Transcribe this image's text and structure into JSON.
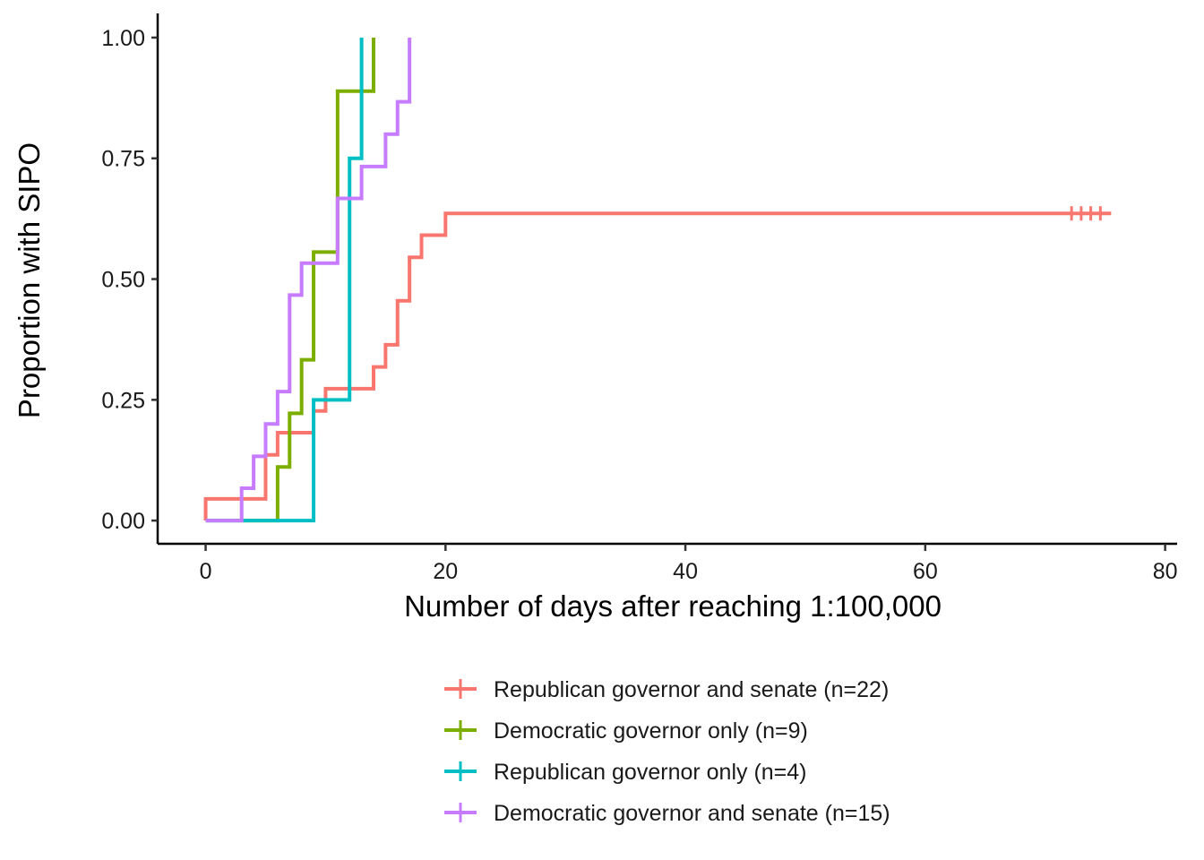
{
  "chart_data": {
    "type": "line",
    "subtype": "step (Kaplan-Meier cumulative incidence)",
    "xlabel": "Number of days after reaching 1:100,000",
    "ylabel": "Proportion with SIPO",
    "xlim": [
      -4,
      81
    ],
    "ylim": [
      -0.048,
      1.05
    ],
    "x_ticks": [
      0,
      20,
      40,
      60,
      80
    ],
    "x_tick_labels": [
      "0",
      "20",
      "40",
      "60",
      "80"
    ],
    "y_ticks": [
      0,
      0.25,
      0.5,
      0.75,
      1.0
    ],
    "y_tick_labels": [
      "0.00",
      "0.25",
      "0.50",
      "0.75",
      "1.00"
    ],
    "grid": false,
    "legend_position": "bottom",
    "series": [
      {
        "name": "Republican governor and senate (n=22)",
        "color": "#F8766D",
        "points": [
          [
            0,
            0.0
          ],
          [
            0,
            0.045
          ],
          [
            5,
            0.045
          ],
          [
            5,
            0.136
          ],
          [
            6,
            0.136
          ],
          [
            6,
            0.182
          ],
          [
            9,
            0.182
          ],
          [
            9,
            0.227
          ],
          [
            10,
            0.227
          ],
          [
            10,
            0.273
          ],
          [
            14,
            0.273
          ],
          [
            14,
            0.318
          ],
          [
            15,
            0.318
          ],
          [
            15,
            0.364
          ],
          [
            16,
            0.364
          ],
          [
            16,
            0.455
          ],
          [
            17,
            0.455
          ],
          [
            17,
            0.545
          ],
          [
            18,
            0.545
          ],
          [
            18,
            0.591
          ],
          [
            20,
            0.591
          ],
          [
            20,
            0.636
          ],
          [
            75.5,
            0.636
          ]
        ],
        "censor_x": [
          72.2,
          73,
          73.8,
          74.6
        ]
      },
      {
        "name": "Democratic governor only (n=9)",
        "color": "#7CAE00",
        "points": [
          [
            0,
            0.0
          ],
          [
            6,
            0.0
          ],
          [
            6,
            0.111
          ],
          [
            7,
            0.111
          ],
          [
            7,
            0.222
          ],
          [
            8,
            0.222
          ],
          [
            8,
            0.333
          ],
          [
            9,
            0.333
          ],
          [
            9,
            0.556
          ],
          [
            11,
            0.556
          ],
          [
            11,
            0.889
          ],
          [
            14,
            0.889
          ],
          [
            14,
            1.0
          ]
        ],
        "censor_x": []
      },
      {
        "name": "Republican governor only (n=4)",
        "color": "#00BFC4",
        "points": [
          [
            0,
            0.0
          ],
          [
            9,
            0.0
          ],
          [
            9,
            0.25
          ],
          [
            12,
            0.25
          ],
          [
            12,
            0.75
          ],
          [
            13,
            0.75
          ],
          [
            13,
            1.0
          ]
        ],
        "censor_x": []
      },
      {
        "name": "Democratic governor and senate (n=15)",
        "color": "#C77CFF",
        "points": [
          [
            0,
            0.0
          ],
          [
            3,
            0.0
          ],
          [
            3,
            0.067
          ],
          [
            4,
            0.067
          ],
          [
            4,
            0.133
          ],
          [
            5,
            0.133
          ],
          [
            5,
            0.2
          ],
          [
            6,
            0.2
          ],
          [
            6,
            0.267
          ],
          [
            7,
            0.267
          ],
          [
            7,
            0.467
          ],
          [
            8,
            0.467
          ],
          [
            8,
            0.533
          ],
          [
            11,
            0.533
          ],
          [
            11,
            0.667
          ],
          [
            13,
            0.667
          ],
          [
            13,
            0.733
          ],
          [
            15,
            0.733
          ],
          [
            15,
            0.8
          ],
          [
            16,
            0.8
          ],
          [
            16,
            0.867
          ],
          [
            17,
            0.867
          ],
          [
            17,
            1.0
          ]
        ],
        "censor_x": []
      }
    ]
  }
}
